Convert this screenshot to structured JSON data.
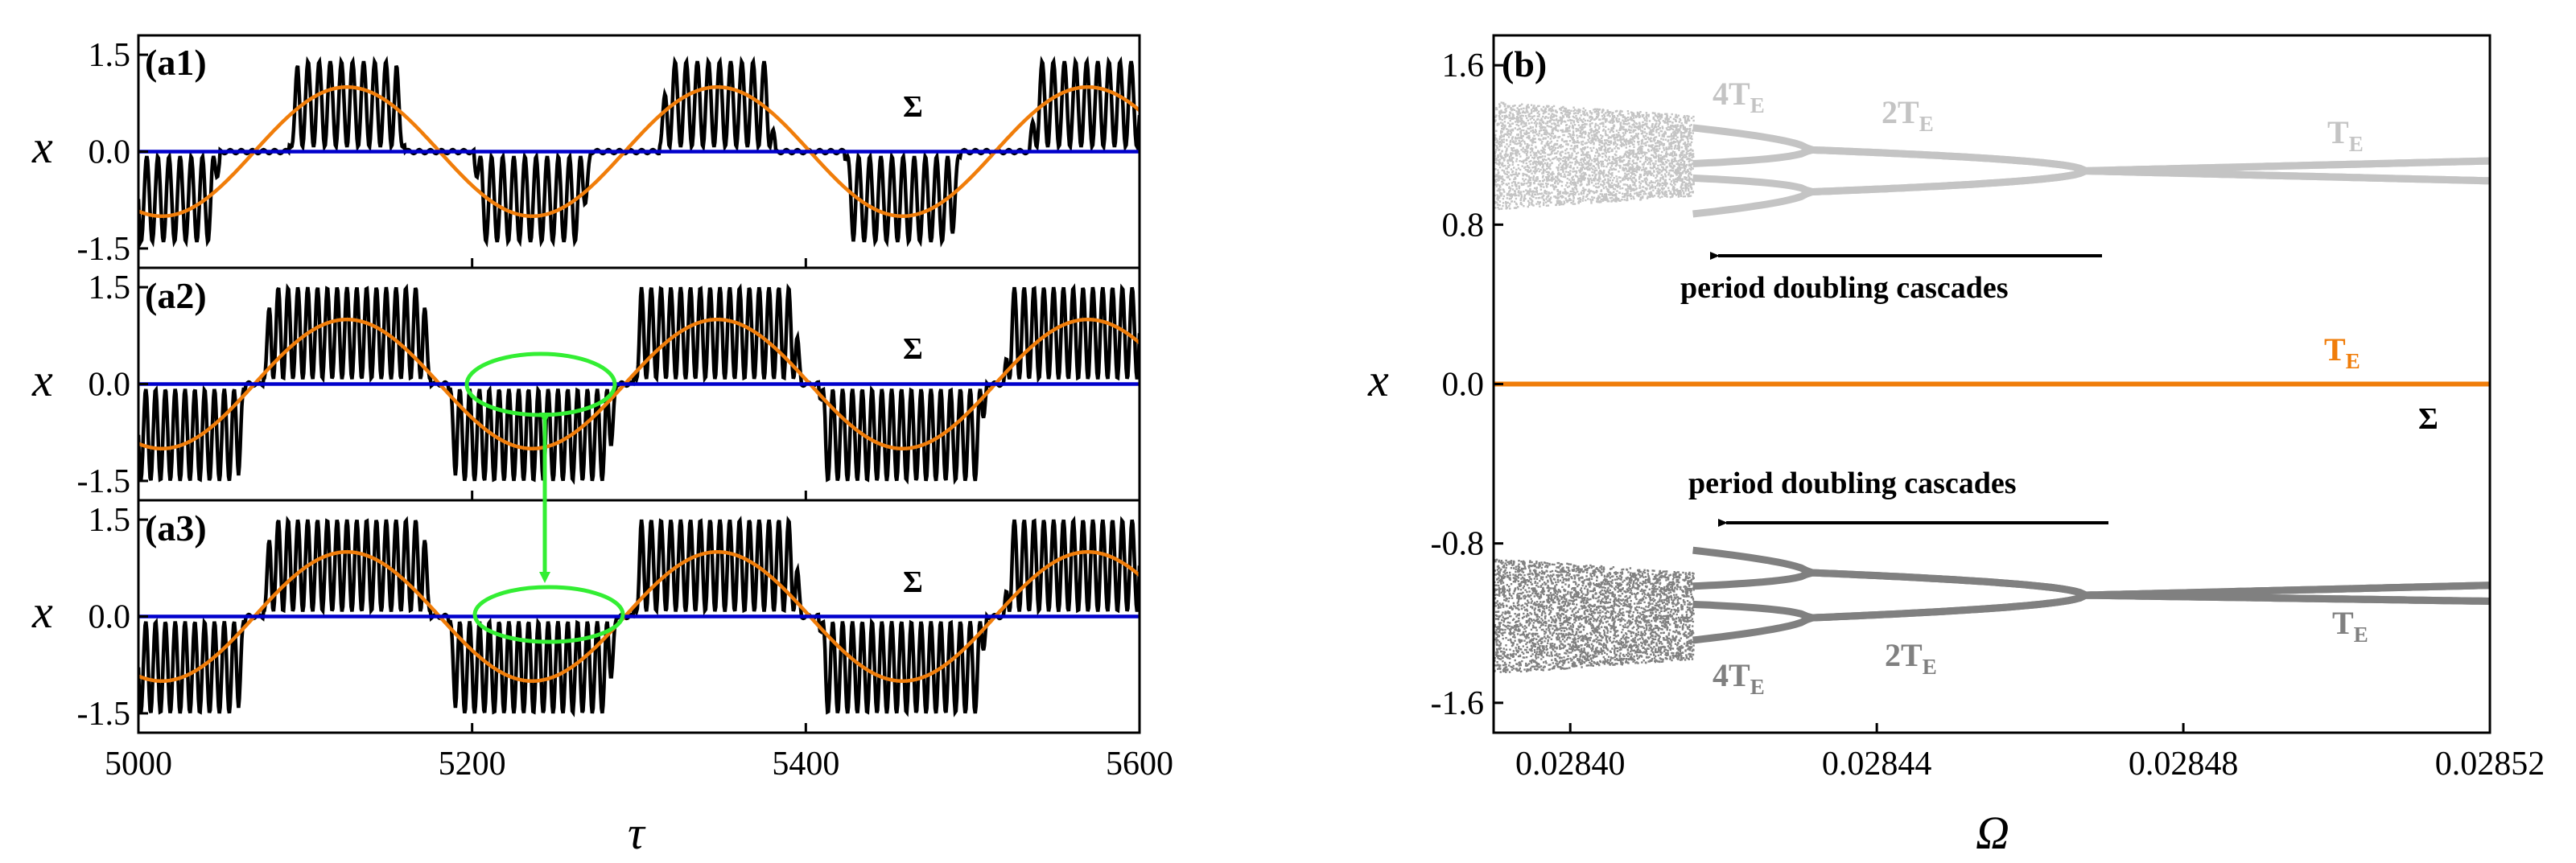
{
  "colors": {
    "trajectory": "#000000",
    "slow_forcing": "#f07d0a",
    "switching_line": "#0000cc",
    "highlight": "#33ee33",
    "branch_upper": "#c4c4c4",
    "branch_lower": "#808080",
    "te_orange": "#f07d0a"
  },
  "chart_data": [
    {
      "id": "a1",
      "type": "line",
      "panel_label": "(a1)",
      "xlabel": "",
      "ylabel": "x",
      "xlim": [
        5000,
        5600
      ],
      "ylim": [
        -1.8,
        1.8
      ],
      "yticks": [
        "1.5",
        "0.0",
        "-1.5"
      ],
      "annotation": "Σ",
      "series": [
        {
          "name": "x(τ)",
          "fast_frequency": 0.15,
          "amplitude": 1.4,
          "active_threshold": 0.55,
          "slow_period": 222
        },
        {
          "name": "slow forcing",
          "amplitude": 1.0,
          "period": 222,
          "phase_tau": 5125
        },
        {
          "name": "Σ",
          "value": 0.0
        }
      ]
    },
    {
      "id": "a2",
      "type": "line",
      "panel_label": "(a2)",
      "xlabel": "",
      "ylabel": "x",
      "xlim": [
        5000,
        5600
      ],
      "ylim": [
        -1.8,
        1.8
      ],
      "yticks": [
        "1.5",
        "0.0",
        "-1.5"
      ],
      "annotation": "Σ",
      "series": [
        {
          "name": "x(τ)",
          "fast_frequency": 0.17,
          "amplitude": 1.5,
          "active_threshold": 0.15,
          "slow_period": 222
        },
        {
          "name": "slow forcing",
          "amplitude": 1.0,
          "period": 222,
          "phase_tau": 5125
        },
        {
          "name": "Σ",
          "value": 0.0
        }
      ]
    },
    {
      "id": "a3",
      "type": "line",
      "panel_label": "(a3)",
      "xlabel": "τ",
      "ylabel": "x",
      "xlim": [
        5000,
        5600
      ],
      "ylim": [
        -1.8,
        1.8
      ],
      "xticks": [
        "5000",
        "5200",
        "5400",
        "5600"
      ],
      "yticks": [
        "1.5",
        "0.0",
        "-1.5"
      ],
      "annotation": "Σ",
      "series": [
        {
          "name": "x(τ)",
          "fast_frequency": 0.17,
          "amplitude": 1.5,
          "active_threshold": 0.15,
          "slow_period": 222
        },
        {
          "name": "slow forcing",
          "amplitude": 1.0,
          "period": 222,
          "phase_tau": 5125
        },
        {
          "name": "Σ",
          "value": 0.0
        }
      ]
    },
    {
      "id": "b",
      "type": "scatter",
      "panel_label": "(b)",
      "xlabel": "Ω",
      "ylabel": "x",
      "xlim": [
        0.02839,
        0.02852
      ],
      "ylim": [
        -1.75,
        1.75
      ],
      "xticks": [
        "0.02840",
        "0.02844",
        "0.02848",
        "0.02852"
      ],
      "yticks": [
        "1.6",
        "0.8",
        "0.0",
        "-0.8",
        "-1.6"
      ],
      "upper_branch": {
        "chaotic_range": [
          0.02839,
          0.028416
        ],
        "chaotic_x": [
          0.88,
          1.42
        ],
        "period4_until": 0.028431,
        "period2_until": 0.028467,
        "merge_x": 1.07,
        "end_x": [
          1.02,
          1.12
        ]
      },
      "lower_branch": {
        "chaotic_range": [
          0.02839,
          0.028416
        ],
        "chaotic_x": [
          -1.45,
          -0.87
        ],
        "period4_until": 0.028431,
        "period2_until": 0.028467,
        "merge_x": -1.06,
        "end_x": [
          -1.09,
          -1.01
        ]
      },
      "equilibrium": {
        "value": 0.0,
        "label": "T",
        "subscript": "E"
      },
      "labels": {
        "upper_4T": {
          "main": "4T",
          "sub": "E"
        },
        "upper_2T": {
          "main": "2T",
          "sub": "E"
        },
        "upper_T": {
          "main": "T",
          "sub": "E"
        },
        "lower_4T": {
          "main": "4T",
          "sub": "E"
        },
        "lower_2T": {
          "main": "2T",
          "sub": "E"
        },
        "lower_T": {
          "main": "T",
          "sub": "E"
        },
        "sigma": "Σ"
      },
      "annotations": [
        "period doubling cascades",
        "period doubling cascades"
      ]
    }
  ]
}
